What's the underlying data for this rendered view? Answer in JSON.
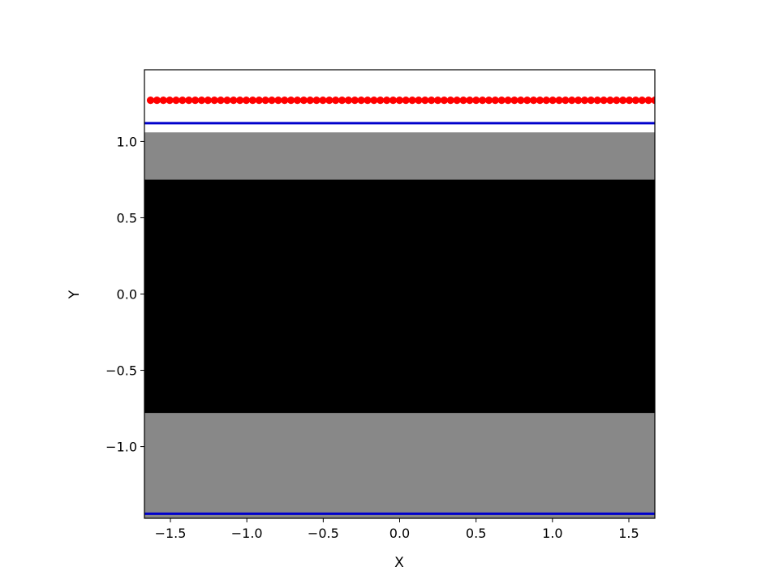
{
  "chart_data": {
    "type": "heatmap",
    "title": "",
    "xlabel": "X",
    "ylabel": "Y",
    "xlim": [
      -1.67,
      1.67
    ],
    "ylim": [
      -1.47,
      1.47
    ],
    "grid": false,
    "legend": "none",
    "x_ticks": [
      {
        "value": -1.5,
        "label": "−1.5"
      },
      {
        "value": -1.0,
        "label": "−1.0"
      },
      {
        "value": -0.5,
        "label": "−0.5"
      },
      {
        "value": 0.0,
        "label": "0.0"
      },
      {
        "value": 0.5,
        "label": "0.5"
      },
      {
        "value": 1.0,
        "label": "1.0"
      },
      {
        "value": 1.5,
        "label": "1.5"
      }
    ],
    "y_ticks": [
      {
        "value": -1.0,
        "label": "−1.0"
      },
      {
        "value": -0.5,
        "label": "−0.5"
      },
      {
        "value": 0.0,
        "label": "0.0"
      },
      {
        "value": 0.5,
        "label": "0.5"
      },
      {
        "value": 1.0,
        "label": "1.0"
      }
    ],
    "background_bands": [
      {
        "y_from": -1.47,
        "y_to": -0.78,
        "color": "#888888"
      },
      {
        "y_from": -0.78,
        "y_to": 0.75,
        "color": "#000000"
      },
      {
        "y_from": 0.75,
        "y_to": 1.06,
        "color": "#888888"
      },
      {
        "y_from": 1.06,
        "y_to": 1.47,
        "color": "#ffffff"
      }
    ],
    "hlines": [
      {
        "y": 1.12,
        "color": "#0000cc"
      },
      {
        "y": -1.44,
        "color": "#0000cc"
      }
    ],
    "scatter": {
      "color": "#ff0000",
      "y": 1.27,
      "x_start": -1.63,
      "x_end": 1.67,
      "count": 80
    }
  }
}
